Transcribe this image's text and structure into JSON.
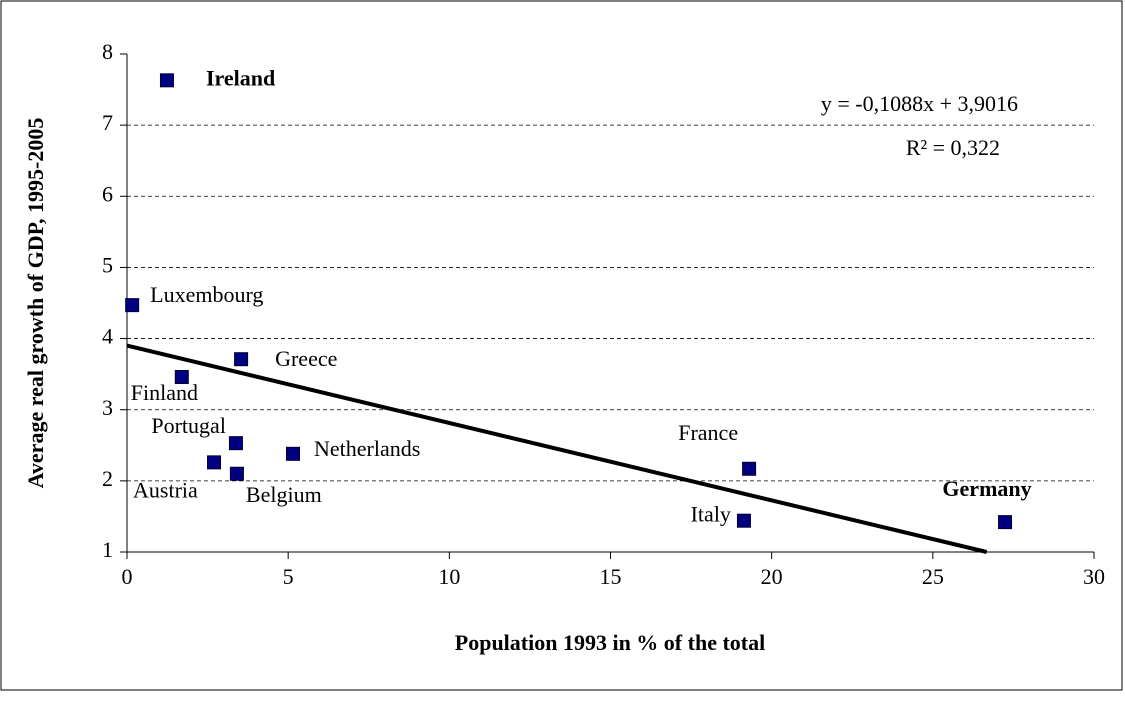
{
  "chart_data": {
    "type": "scatter",
    "x_label": "Population 1993 in % of the total",
    "y_label": "Average real growth of GDP, 1995-2005",
    "labels": [
      "Ireland",
      "Luxembourg",
      "Finland",
      "Greece",
      "Portugal",
      "Austria",
      "Belgium",
      "Netherlands",
      "France",
      "Italy",
      "Germany"
    ],
    "label_bold": [
      true,
      false,
      false,
      false,
      false,
      false,
      false,
      false,
      false,
      false,
      true
    ],
    "x": [
      1.24,
      0.16,
      1.7,
      3.54,
      3.38,
      2.7,
      3.41,
      5.15,
      19.3,
      19.14,
      27.24
    ],
    "values": [
      7.63,
      4.47,
      3.46,
      3.71,
      2.53,
      2.26,
      2.1,
      2.38,
      2.17,
      1.44,
      1.42
    ],
    "color": "#000080",
    "trendline": {
      "slope": -0.1088,
      "intercept": 3.9016,
      "color": "#000000",
      "equation_label": "y = -0,1088x + 3,9016",
      "r2_label": "R² = 0,322"
    },
    "xlim": [
      0,
      30
    ],
    "xticks": [
      0,
      5,
      10,
      15,
      20,
      25,
      30
    ],
    "ylim": [
      1,
      8
    ],
    "yticks": [
      1,
      2,
      3,
      4,
      5,
      6,
      7,
      8
    ],
    "grid": true
  }
}
